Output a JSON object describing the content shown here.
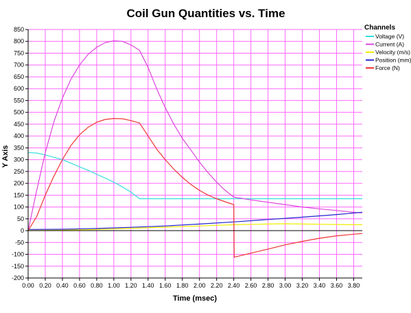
{
  "chart_data": {
    "type": "line",
    "title": "Coil Gun Quantities vs. Time",
    "xlabel": "Time (msec)",
    "ylabel": "Y Axis",
    "xlim": [
      0,
      3.9
    ],
    "ylim": [
      -200,
      850
    ],
    "x_ticks": [
      "0.00",
      "0.20",
      "0.40",
      "0.60",
      "0.80",
      "1.00",
      "1.20",
      "1.40",
      "1.60",
      "1.80",
      "2.00",
      "2.20",
      "2.40",
      "2.60",
      "2.80",
      "3.00",
      "3.20",
      "3.40",
      "3.60",
      "3.80"
    ],
    "y_ticks": [
      "850",
      "800",
      "750",
      "700",
      "650",
      "600",
      "550",
      "500",
      "450",
      "400",
      "350",
      "300",
      "250",
      "200",
      "150",
      "100",
      "50",
      "0",
      "-50",
      "-100",
      "-150",
      "-200"
    ],
    "grid": true,
    "grid_color": "#ff66ff",
    "legend_title": "Channels",
    "legend_position": "top-right",
    "series": [
      {
        "name": "Voltage (V)",
        "color": "#33dddd",
        "points": [
          [
            0,
            330
          ],
          [
            0.1,
            328
          ],
          [
            0.2,
            320
          ],
          [
            0.3,
            310
          ],
          [
            0.4,
            300
          ],
          [
            0.5,
            285
          ],
          [
            0.6,
            270
          ],
          [
            0.7,
            255
          ],
          [
            0.8,
            238
          ],
          [
            0.9,
            222
          ],
          [
            1.0,
            205
          ],
          [
            1.1,
            185
          ],
          [
            1.2,
            163
          ],
          [
            1.3,
            135
          ],
          [
            1.5,
            135
          ],
          [
            2.0,
            135
          ],
          [
            2.5,
            135
          ],
          [
            3.0,
            135
          ],
          [
            3.5,
            135
          ],
          [
            3.9,
            135
          ]
        ]
      },
      {
        "name": "Current (A)",
        "color": "#dd44dd",
        "points": [
          [
            0,
            0
          ],
          [
            0.1,
            170
          ],
          [
            0.2,
            330
          ],
          [
            0.3,
            460
          ],
          [
            0.4,
            560
          ],
          [
            0.5,
            640
          ],
          [
            0.6,
            700
          ],
          [
            0.7,
            745
          ],
          [
            0.8,
            775
          ],
          [
            0.9,
            795
          ],
          [
            1.0,
            802
          ],
          [
            1.1,
            800
          ],
          [
            1.2,
            785
          ],
          [
            1.3,
            762
          ],
          [
            1.4,
            690
          ],
          [
            1.5,
            600
          ],
          [
            1.6,
            520
          ],
          [
            1.7,
            450
          ],
          [
            1.8,
            390
          ],
          [
            1.9,
            340
          ],
          [
            2.0,
            290
          ],
          [
            2.1,
            245
          ],
          [
            2.2,
            205
          ],
          [
            2.3,
            170
          ],
          [
            2.4,
            142
          ],
          [
            2.6,
            130
          ],
          [
            2.8,
            120
          ],
          [
            3.0,
            110
          ],
          [
            3.2,
            100
          ],
          [
            3.4,
            92
          ],
          [
            3.6,
            85
          ],
          [
            3.8,
            78
          ],
          [
            3.9,
            75
          ]
        ]
      },
      {
        "name": "Velocity (m/s)",
        "color": "#eeee00",
        "points": [
          [
            0,
            0
          ],
          [
            0.4,
            2
          ],
          [
            0.8,
            5
          ],
          [
            1.2,
            10
          ],
          [
            1.6,
            15
          ],
          [
            2.0,
            20
          ],
          [
            2.4,
            25
          ],
          [
            2.8,
            28
          ],
          [
            3.0,
            29
          ],
          [
            3.2,
            28
          ],
          [
            3.4,
            27
          ],
          [
            3.6,
            26
          ],
          [
            3.9,
            25
          ]
        ]
      },
      {
        "name": "Position (mm)",
        "color": "#2222cc",
        "points": [
          [
            0,
            5
          ],
          [
            0.4,
            6
          ],
          [
            0.8,
            9
          ],
          [
            1.2,
            14
          ],
          [
            1.6,
            20
          ],
          [
            2.0,
            28
          ],
          [
            2.4,
            37
          ],
          [
            2.8,
            47
          ],
          [
            3.2,
            57
          ],
          [
            3.6,
            68
          ],
          [
            3.9,
            78
          ]
        ]
      },
      {
        "name": "Force (N)",
        "color": "#ee3333",
        "points": [
          [
            0,
            0
          ],
          [
            0.1,
            60
          ],
          [
            0.2,
            150
          ],
          [
            0.3,
            230
          ],
          [
            0.4,
            300
          ],
          [
            0.5,
            360
          ],
          [
            0.6,
            405
          ],
          [
            0.7,
            437
          ],
          [
            0.8,
            458
          ],
          [
            0.9,
            470
          ],
          [
            1.0,
            474
          ],
          [
            1.1,
            473
          ],
          [
            1.2,
            465
          ],
          [
            1.3,
            455
          ],
          [
            1.4,
            400
          ],
          [
            1.5,
            345
          ],
          [
            1.6,
            300
          ],
          [
            1.7,
            260
          ],
          [
            1.8,
            225
          ],
          [
            1.9,
            195
          ],
          [
            2.0,
            170
          ],
          [
            2.1,
            150
          ],
          [
            2.2,
            135
          ],
          [
            2.3,
            122
          ],
          [
            2.4,
            110
          ],
          [
            2.405,
            -112
          ],
          [
            2.6,
            -95
          ],
          [
            2.8,
            -78
          ],
          [
            3.0,
            -60
          ],
          [
            3.2,
            -45
          ],
          [
            3.4,
            -32
          ],
          [
            3.6,
            -22
          ],
          [
            3.8,
            -15
          ],
          [
            3.9,
            -12
          ]
        ]
      }
    ]
  }
}
